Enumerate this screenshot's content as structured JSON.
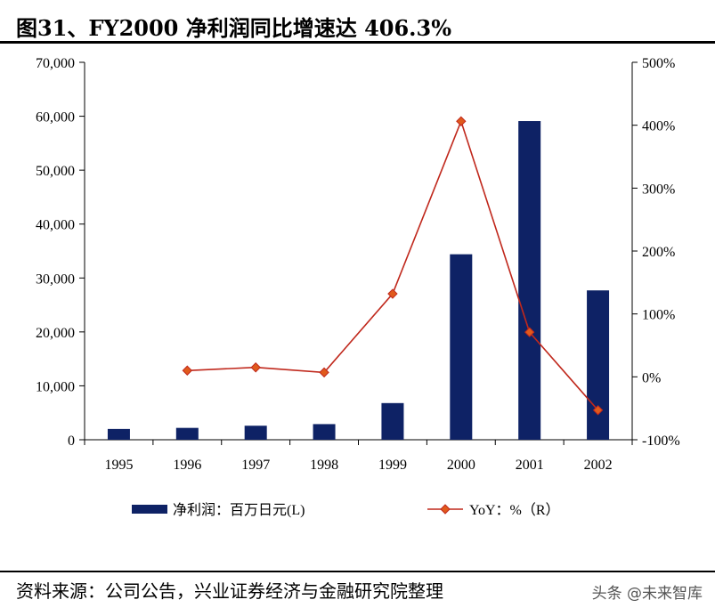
{
  "figure": {
    "title": "图31、FY2000 净利润同比增速达 406.3%",
    "source": "资料来源：公司公告，兴业证券经济与金融研究院整理",
    "watermark": "头条 @未来智库"
  },
  "colors": {
    "bar": "#0e2265",
    "line": "#c0281c",
    "marker": "#e05a1c"
  },
  "chart_data": {
    "type": "bar+line",
    "categories": [
      "1995",
      "1996",
      "1997",
      "1998",
      "1999",
      "2000",
      "2001",
      "2002"
    ],
    "series": [
      {
        "name": "净利润：百万日元(L)",
        "type": "bar",
        "axis": "left",
        "values": [
          2000,
          2200,
          2600,
          2900,
          6800,
          34400,
          59100,
          27700
        ]
      },
      {
        "name": "YoY：%（R）",
        "type": "line",
        "axis": "right",
        "values": [
          null,
          10,
          15,
          7,
          132,
          406.3,
          71,
          -53
        ]
      }
    ],
    "y_left": {
      "min": 0,
      "max": 70000,
      "ticks": [
        0,
        10000,
        20000,
        30000,
        40000,
        50000,
        60000,
        70000
      ],
      "tick_labels": [
        "0",
        "10,000",
        "20,000",
        "30,000",
        "40,000",
        "50,000",
        "60,000",
        "70,000"
      ]
    },
    "y_right": {
      "min": -100,
      "max": 500,
      "ticks": [
        -100,
        0,
        100,
        200,
        300,
        400,
        500
      ],
      "tick_labels": [
        "-100%",
        "0%",
        "100%",
        "200%",
        "300%",
        "400%",
        "500%"
      ]
    },
    "grid": false,
    "legend_position": "bottom"
  }
}
